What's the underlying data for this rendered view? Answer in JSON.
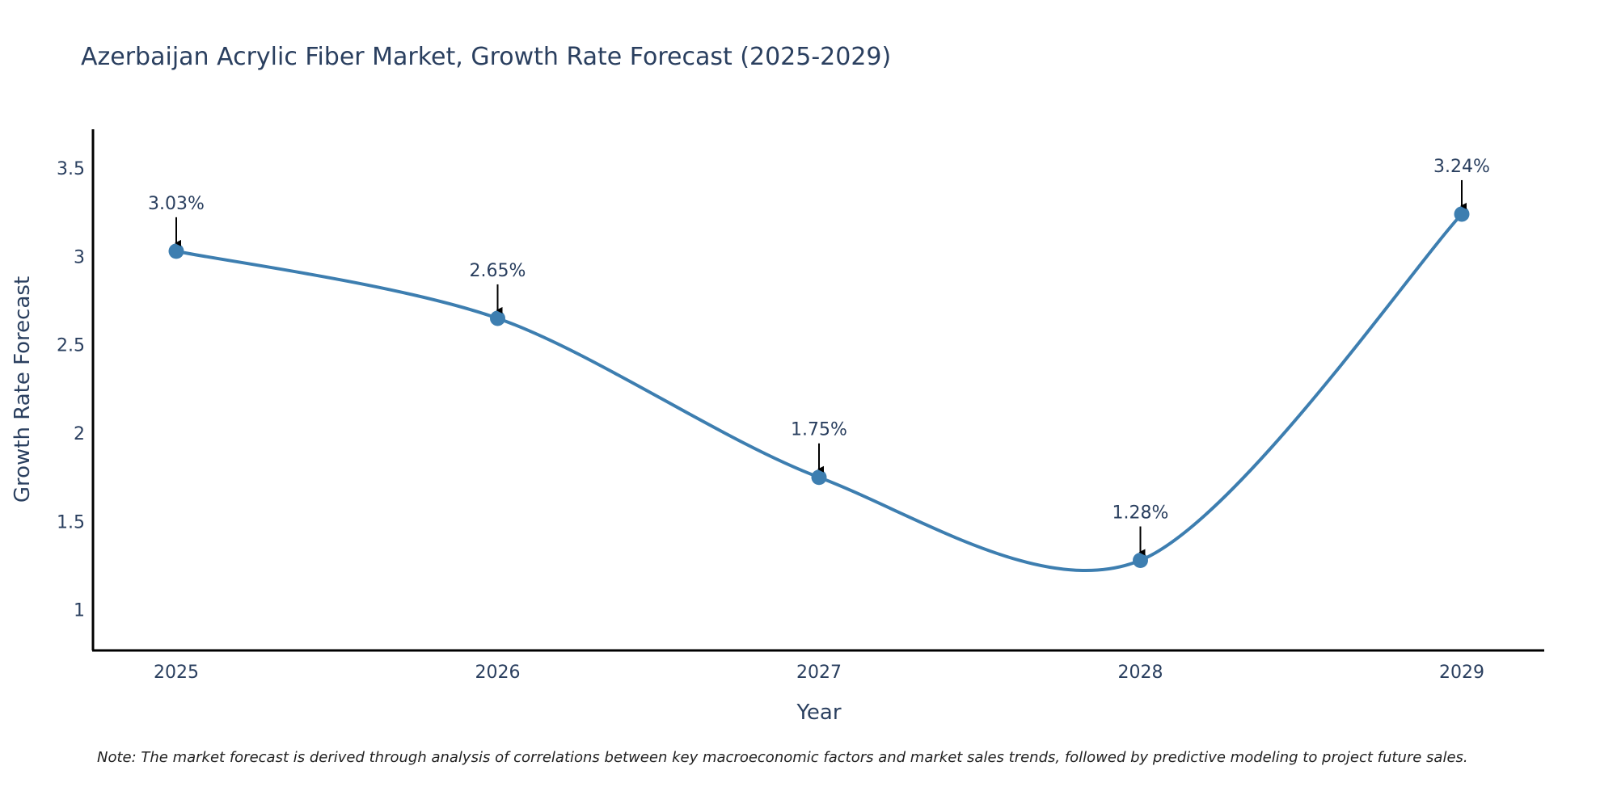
{
  "chart_data": {
    "type": "line",
    "title": "Azerbaijan Acrylic Fiber Market, Growth Rate Forecast (2025-2029)",
    "xlabel": "Year",
    "ylabel": "Growth Rate Forecast",
    "categories": [
      "2025",
      "2026",
      "2027",
      "2028",
      "2029"
    ],
    "series": [
      {
        "name": "Growth Rate Forecast",
        "values": [
          3.03,
          2.65,
          1.75,
          1.28,
          3.24
        ],
        "labels": [
          "3.03%",
          "2.65%",
          "1.75%",
          "1.28%",
          "3.24%"
        ],
        "color": "#3d7eb0"
      }
    ],
    "yticks": [
      1,
      1.5,
      2,
      2.5,
      3,
      3.5
    ],
    "ytick_labels": [
      "1",
      "1.5",
      "2",
      "2.5",
      "3",
      "3.5"
    ],
    "ylim": [
      0.77,
      3.72
    ],
    "grid": false,
    "line_shape": "spline",
    "note": "Note: The market forecast is derived through analysis of correlations between key macroeconomic factors and market sales trends, followed by predictive modeling to project future sales."
  },
  "colors": {
    "line": "#3d7eb0",
    "marker": "#3d7eb0",
    "axis": "#000000",
    "text": "#2a3f5f",
    "arrow": "#000000"
  }
}
